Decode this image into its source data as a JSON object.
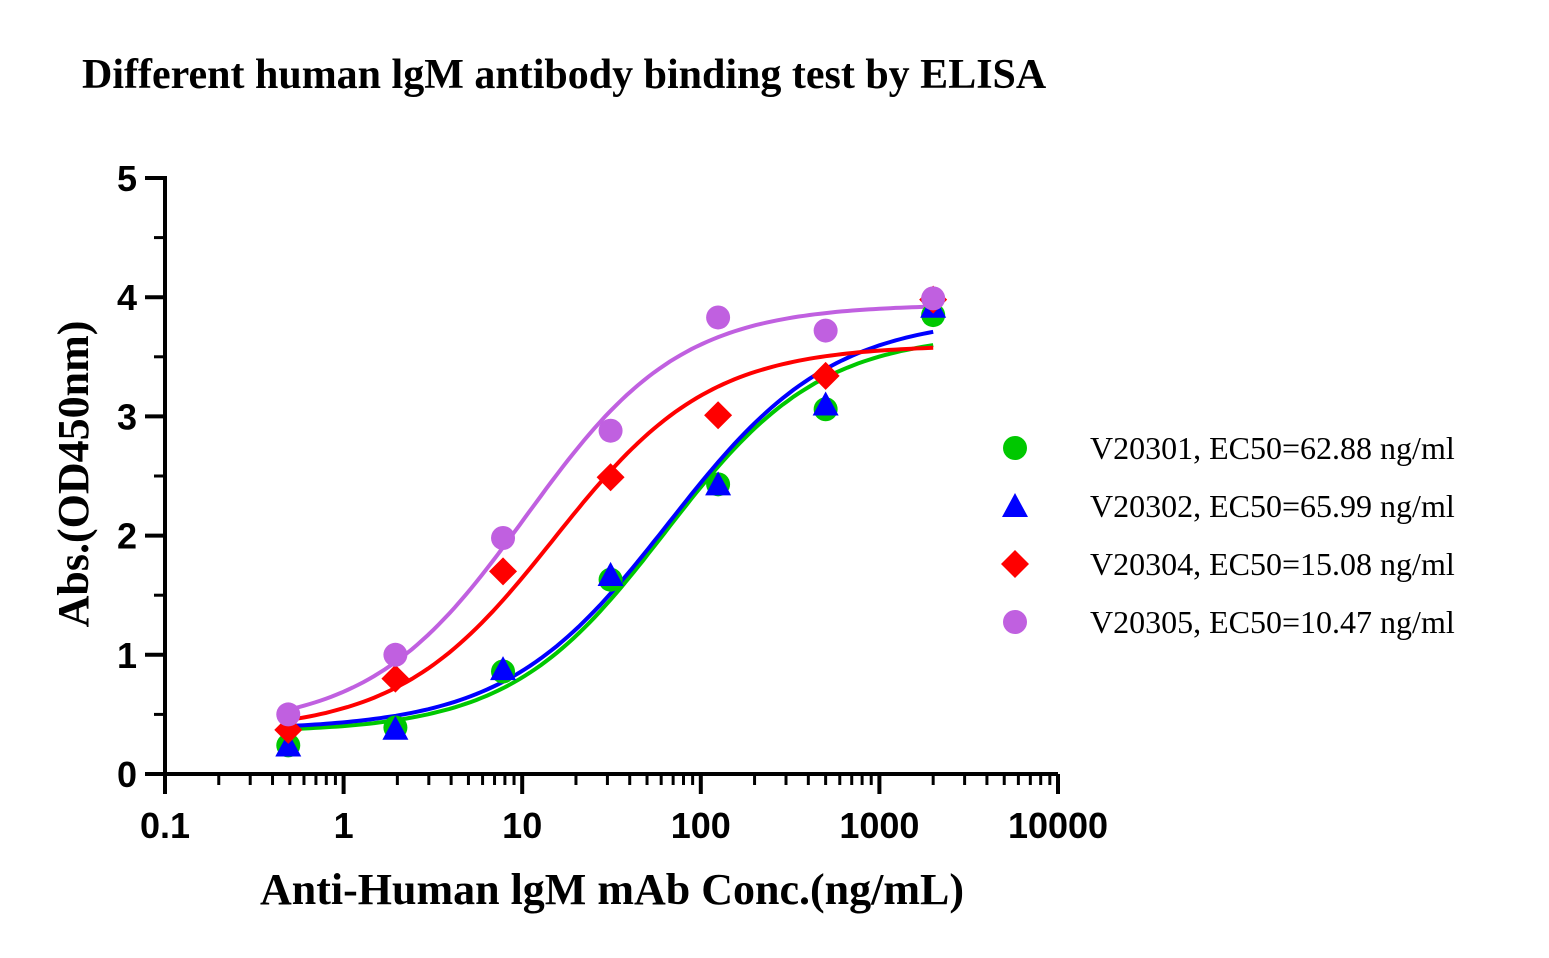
{
  "chart_data": {
    "type": "scatter",
    "title": "Different  human lgM antibody binding test by ELISA",
    "xlabel": "Anti-Human lgM mAb Conc.(ng/mL)",
    "ylabel": "Abs.(OD450nm)",
    "xscale": "log",
    "xlim": [
      0.1,
      10000
    ],
    "ylim": [
      0,
      5
    ],
    "xticks": [
      "0.1",
      "1",
      "10",
      "100",
      "1000",
      "10000"
    ],
    "yticks": [
      "0",
      "1",
      "2",
      "3",
      "4",
      "5"
    ],
    "grid": false,
    "legend_position": "right",
    "x": [
      0.49,
      1.95,
      7.81,
      31.25,
      125,
      500,
      2000
    ],
    "series": [
      {
        "name": "V20301, EC50=62.88 ng/ml",
        "marker": "circle",
        "color": "#00C800",
        "values": [
          0.24,
          0.39,
          0.86,
          1.63,
          2.43,
          3.06,
          3.85
        ],
        "fit": {
          "bottom": 0.35,
          "top": 3.7,
          "ec50": 62.88,
          "hill": 1.0
        }
      },
      {
        "name": "V20302, EC50=65.99 ng/ml",
        "marker": "triangle",
        "color": "#0000FF",
        "values": [
          0.24,
          0.38,
          0.88,
          1.67,
          2.43,
          3.1,
          3.92
        ],
        "fit": {
          "bottom": 0.37,
          "top": 3.84,
          "ec50": 65.99,
          "hill": 0.95
        }
      },
      {
        "name": "V20304, EC50=15.08 ng/ml",
        "marker": "diamond",
        "color": "#FF0000",
        "values": [
          0.37,
          0.8,
          1.7,
          2.49,
          3.01,
          3.34,
          3.98
        ],
        "fit": {
          "bottom": 0.35,
          "top": 3.6,
          "ec50": 15.08,
          "hill": 1.0
        }
      },
      {
        "name": "V20305, EC50=10.47 ng/ml",
        "marker": "circle",
        "color": "#C060E0",
        "values": [
          0.5,
          1.0,
          1.98,
          2.88,
          3.83,
          3.72,
          3.99
        ],
        "fit": {
          "bottom": 0.38,
          "top": 3.94,
          "ec50": 10.47,
          "hill": 1.0
        }
      }
    ]
  }
}
